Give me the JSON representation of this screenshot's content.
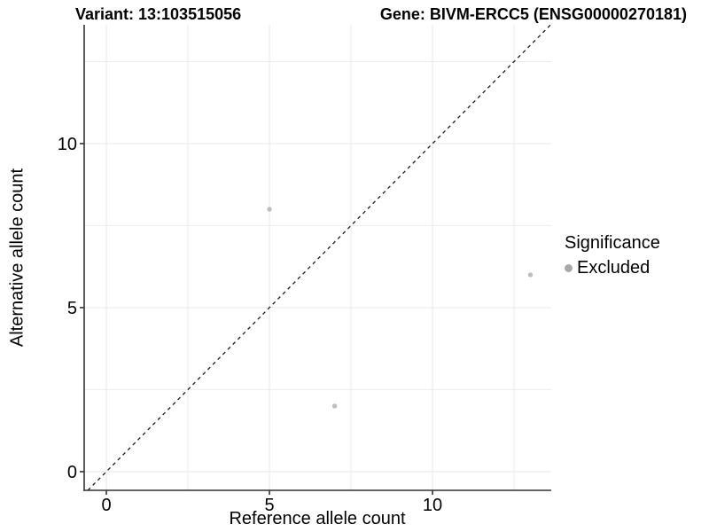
{
  "titles": {
    "variant": "Variant: 13:103515056",
    "gene": "Gene: BIVM-ERCC5 (ENSG00000270181)"
  },
  "legend": {
    "title": "Significance",
    "items": [
      {
        "label": "Excluded",
        "color": "#a8a8a8"
      }
    ]
  },
  "chart_data": {
    "type": "scatter",
    "title_left": "Variant: 13:103515056",
    "title_right": "Gene: BIVM-ERCC5 (ENSG00000270181)",
    "xlabel": "Reference allele count",
    "ylabel": "Alternative allele count",
    "xlim": [
      -0.68,
      13.64
    ],
    "ylim": [
      -0.57,
      13.62
    ],
    "xticks": [
      0,
      5,
      10
    ],
    "yticks": [
      0,
      5,
      10
    ],
    "xticks_minor": [
      2.5,
      7.5,
      12.5
    ],
    "yticks_minor": [
      2.5,
      7.5,
      12.5
    ],
    "grid": true,
    "legend_position": "right",
    "reference_line": {
      "equation": "y = x",
      "style": "dashed",
      "color": "#1a1a1a"
    },
    "series": [
      {
        "name": "Excluded",
        "color": "#bebebe",
        "points": [
          [
            5,
            8
          ],
          [
            7,
            2
          ],
          [
            13,
            6
          ]
        ]
      }
    ]
  },
  "style": {
    "background": "#ffffff",
    "grid_color": "#ebebeb",
    "axis_color": "#333333",
    "point_color": "#bebebe",
    "legend_dot_color": "#a8a8a8",
    "dash_color": "#1a1a1a",
    "text_color": "#000000"
  }
}
